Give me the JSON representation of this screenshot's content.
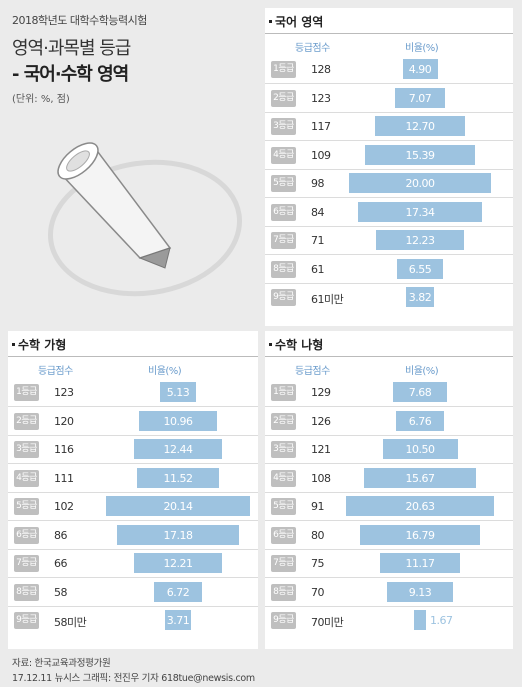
{
  "header": {
    "top_label": "2018학년도 대학수학능력시험",
    "title_line1": "영역·과목별 등급",
    "title_line2": "- 국어·수학 영역",
    "unit": "(단위: %, 점)"
  },
  "colors": {
    "bar": "#9dc3e0",
    "badge": "#bfbfbf",
    "header_text": "#6b9ccc"
  },
  "illustration": "chalk-icon",
  "footer": {
    "source": "자료: 한국교육과정평가원",
    "credit": "17.12.11 뉴시스 그래픽: 전진우 기자 618tue@newsis.com"
  },
  "chart_data": [
    {
      "type": "bar",
      "title": "국어 영역",
      "columns": [
        "등급점수",
        "비율(%)"
      ],
      "categories": [
        "1등급",
        "2등급",
        "3등급",
        "4등급",
        "5등급",
        "6등급",
        "7등급",
        "8등급",
        "9등급"
      ],
      "scores": [
        "128",
        "123",
        "117",
        "109",
        "98",
        "84",
        "71",
        "61",
        "61미만"
      ],
      "values": [
        4.9,
        7.07,
        12.7,
        15.39,
        20.0,
        17.34,
        12.23,
        6.55,
        3.82
      ],
      "labels": [
        "4.90",
        "7.07",
        "12.70",
        "15.39",
        "20.00",
        "17.34",
        "12.23",
        "6.55",
        "3.82"
      ]
    },
    {
      "type": "bar",
      "title": "수학 가형",
      "columns": [
        "등급점수",
        "비율(%)"
      ],
      "categories": [
        "1등급",
        "2등급",
        "3등급",
        "4등급",
        "5등급",
        "6등급",
        "7등급",
        "8등급",
        "9등급"
      ],
      "scores": [
        "123",
        "120",
        "116",
        "111",
        "102",
        "86",
        "66",
        "58",
        "58미만"
      ],
      "values": [
        5.13,
        10.96,
        12.44,
        11.52,
        20.14,
        17.18,
        12.21,
        6.72,
        3.71
      ],
      "labels": [
        "5.13",
        "10.96",
        "12.44",
        "11.52",
        "20.14",
        "17.18",
        "12.21",
        "6.72",
        "3.71"
      ]
    },
    {
      "type": "bar",
      "title": "수학 나형",
      "columns": [
        "등급점수",
        "비율(%)"
      ],
      "categories": [
        "1등급",
        "2등급",
        "3등급",
        "4등급",
        "5등급",
        "6등급",
        "7등급",
        "8등급",
        "9등급"
      ],
      "scores": [
        "129",
        "126",
        "121",
        "108",
        "91",
        "80",
        "75",
        "70",
        "70미만"
      ],
      "values": [
        7.68,
        6.76,
        10.5,
        15.67,
        20.63,
        16.79,
        11.17,
        9.13,
        1.67
      ],
      "labels": [
        "7.68",
        "6.76",
        "10.50",
        "15.67",
        "20.63",
        "16.79",
        "11.17",
        "9.13",
        "1.67"
      ]
    }
  ]
}
